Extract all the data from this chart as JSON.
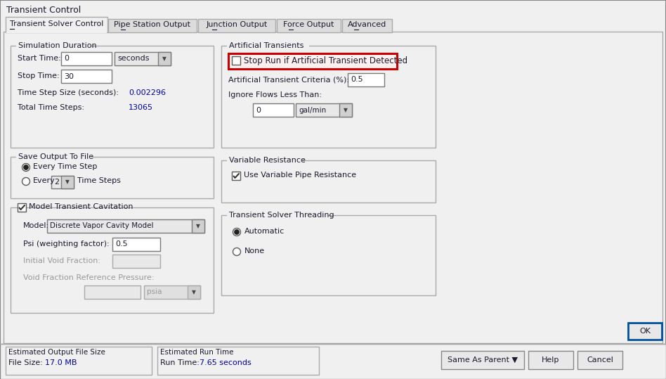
{
  "title": "Transient Control",
  "bg_color": "#f0f0f0",
  "white": "#ffffff",
  "text_color": "#1a1a2e",
  "blue_text": "#0000aa",
  "red_highlight": "#cc0000",
  "tabs": [
    "Transient Solver Control",
    "Pipe Station Output",
    "Junction Output",
    "Force Output",
    "Advanced"
  ],
  "sim_duration_label": "Simulation Duration",
  "start_time_label": "Start Time:",
  "start_time_val": "0",
  "start_time_unit": "seconds",
  "stop_time_label": "Stop Time:",
  "stop_time_val": "30",
  "time_step_label": "Time Step Size (seconds):",
  "time_step_val": "0.002296",
  "total_steps_label": "Total Time Steps:",
  "total_steps_val": "13065",
  "save_output_label": "Save Output To File",
  "every_time_step": "Every Time Step",
  "every_label": "Every",
  "every_val": "2",
  "time_steps_label": "Time Steps",
  "model_cavitation_label": "Model Transient Cavitation",
  "model_label": "Model:",
  "model_val": "Discrete Vapor Cavity Model",
  "psi_label": "Psi (weighting factor):",
  "psi_val": "0.5",
  "void_fraction_label": "Initial Void Fraction:",
  "void_ref_label": "Void Fraction Reference Pressure:",
  "psia_label": "psia",
  "art_transients_label": "Artificial Transients",
  "stop_run_label": "Stop Run if Artificial Transient Detected",
  "criteria_label": "Artificial Transient Criteria (%):",
  "criteria_val": "0.5",
  "ignore_flows_label": "Ignore Flows Less Than:",
  "ignore_val": "0",
  "gal_min": "gal/min",
  "var_resistance_label": "Variable Resistance",
  "use_var_label": "Use Variable Pipe Resistance",
  "threading_label": "Transient Solver Threading",
  "automatic_label": "Automatic",
  "none_label": "None",
  "est_output_label": "Estimated Output File Size",
  "file_size_label": "File Size:",
  "file_size_val": "17.0 MB",
  "est_run_label": "Estimated Run Time",
  "run_time_label": "Run Time:",
  "run_time_val": "7.65 seconds",
  "btn_same_as_parent": "Same As Parent",
  "btn_help": "Help",
  "btn_cancel": "Cancel",
  "btn_ok": "OK"
}
